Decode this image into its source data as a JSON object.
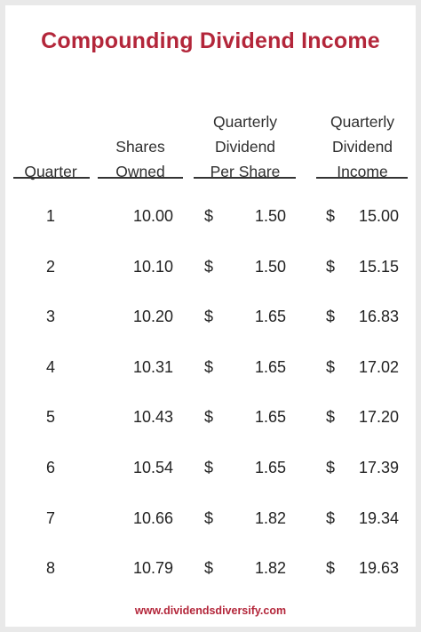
{
  "title": "Compounding Dividend Income",
  "headers": {
    "quarter": [
      "Quarter"
    ],
    "shares": [
      "Shares",
      "Owned"
    ],
    "dividend": [
      "Quarterly",
      "Dividend",
      "Per Share"
    ],
    "income": [
      "Quarterly",
      "Dividend",
      "Income"
    ]
  },
  "currency_symbol": "$",
  "rows": [
    {
      "quarter": "1",
      "shares": "10.00",
      "dividend": "1.50",
      "income": "15.00"
    },
    {
      "quarter": "2",
      "shares": "10.10",
      "dividend": "1.50",
      "income": "15.15"
    },
    {
      "quarter": "3",
      "shares": "10.20",
      "dividend": "1.65",
      "income": "16.83"
    },
    {
      "quarter": "4",
      "shares": "10.31",
      "dividend": "1.65",
      "income": "17.02"
    },
    {
      "quarter": "5",
      "shares": "10.43",
      "dividend": "1.65",
      "income": "17.20"
    },
    {
      "quarter": "6",
      "shares": "10.54",
      "dividend": "1.65",
      "income": "17.39"
    },
    {
      "quarter": "7",
      "shares": "10.66",
      "dividend": "1.82",
      "income": "19.34"
    },
    {
      "quarter": "8",
      "shares": "10.79",
      "dividend": "1.82",
      "income": "19.63"
    }
  ],
  "footer": "www.dividendsdiversify.com",
  "colors": {
    "accent": "#b3263a",
    "text": "#222222"
  }
}
